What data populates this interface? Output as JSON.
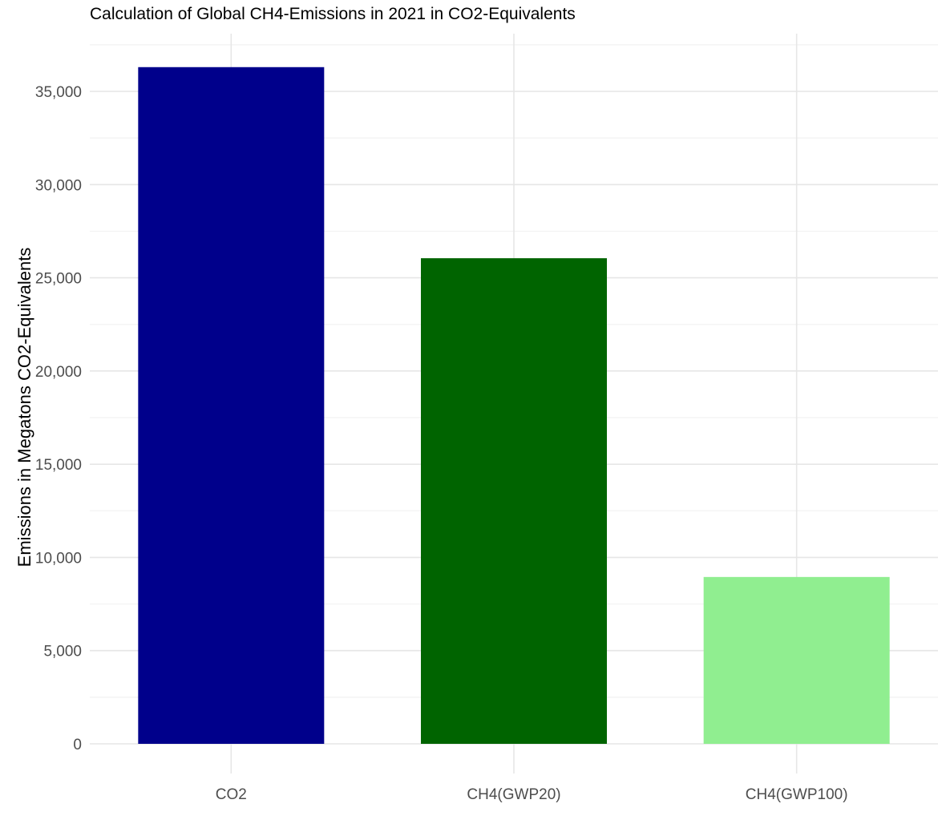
{
  "chart_data": {
    "type": "bar",
    "title": "Calculation of Global CH4-Emissions in 2021 in CO2-Equivalents",
    "xlabel": "",
    "ylabel": "Emissions in Megatons CO2-Equivalents",
    "categories": [
      "CO2",
      "CH4(GWP20)",
      "CH4(GWP100)"
    ],
    "values": [
      36300,
      26050,
      8950
    ],
    "bar_colors": [
      "#00008b",
      "#006400",
      "#90ee90"
    ],
    "ylim": [
      0,
      37000
    ],
    "y_ticks": [
      0,
      5000,
      10000,
      15000,
      20000,
      25000,
      30000,
      35000
    ],
    "y_tick_labels": [
      "0",
      "5,000",
      "10,000",
      "15,000",
      "20,000",
      "25,000",
      "30,000",
      "35,000"
    ],
    "grid": true,
    "legend": "none"
  }
}
